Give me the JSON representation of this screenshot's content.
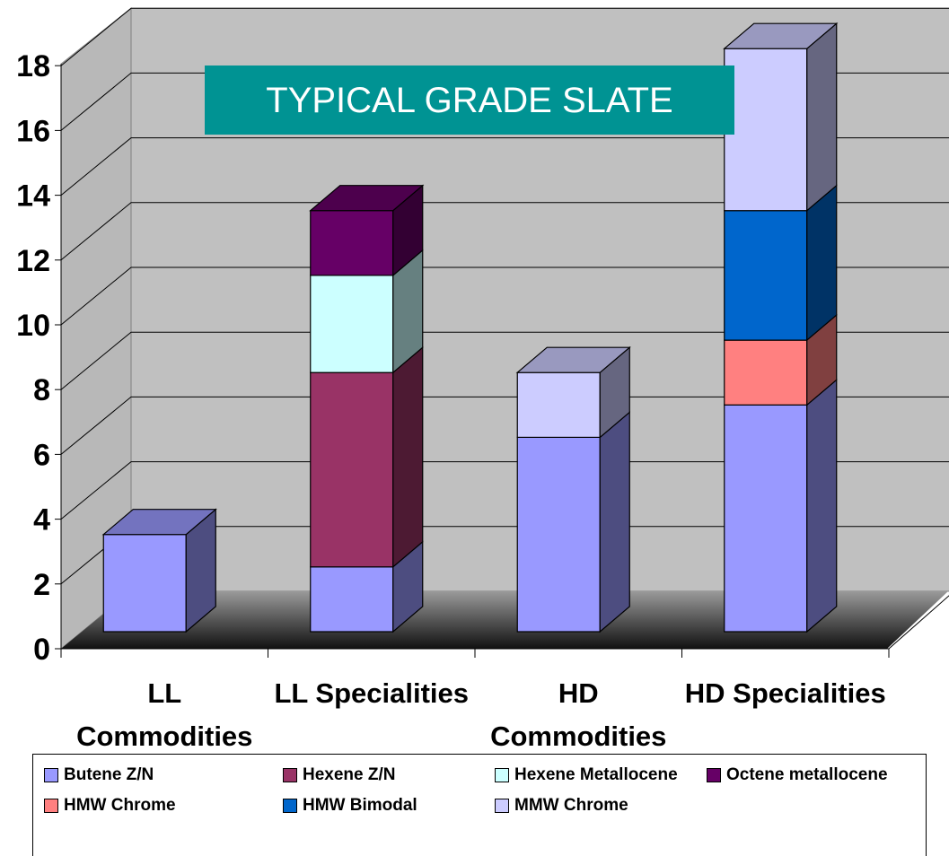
{
  "chart_data": {
    "type": "bar",
    "stacked": true,
    "three_d": true,
    "title": "TYPICAL GRADE SLATE",
    "title_bg": "#009393",
    "categories": [
      [
        "LL",
        "Commodities"
      ],
      [
        "LL Specialities"
      ],
      [
        "HD",
        "Commodities"
      ],
      [
        "HD Specialities"
      ]
    ],
    "yticks": [
      "0",
      "2",
      "4",
      "6",
      "8",
      "10",
      "12",
      "14",
      "16",
      "18"
    ],
    "ylim": [
      0,
      18
    ],
    "grid": true,
    "legend_position": "bottom",
    "series": [
      {
        "name": "Butene Z/N",
        "color": "#9999ff",
        "values": [
          3,
          2,
          6,
          7
        ]
      },
      {
        "name": "Hexene Z/N",
        "color": "#993366",
        "values": [
          0,
          6,
          0,
          0
        ]
      },
      {
        "name": "Hexene Metallocene",
        "color": "#ccffff",
        "values": [
          0,
          3,
          0,
          0
        ]
      },
      {
        "name": "Octene metallocene",
        "color": "#660066",
        "values": [
          0,
          2,
          0,
          0
        ]
      },
      {
        "name": "HMW Chrome",
        "color": "#ff8080",
        "values": [
          0,
          0,
          0,
          2
        ]
      },
      {
        "name": "HMW Bimodal",
        "color": "#0066cc",
        "values": [
          0,
          0,
          0,
          4
        ]
      },
      {
        "name": "MMW Chrome",
        "color": "#ccccff",
        "values": [
          0,
          0,
          2,
          5
        ]
      }
    ]
  }
}
